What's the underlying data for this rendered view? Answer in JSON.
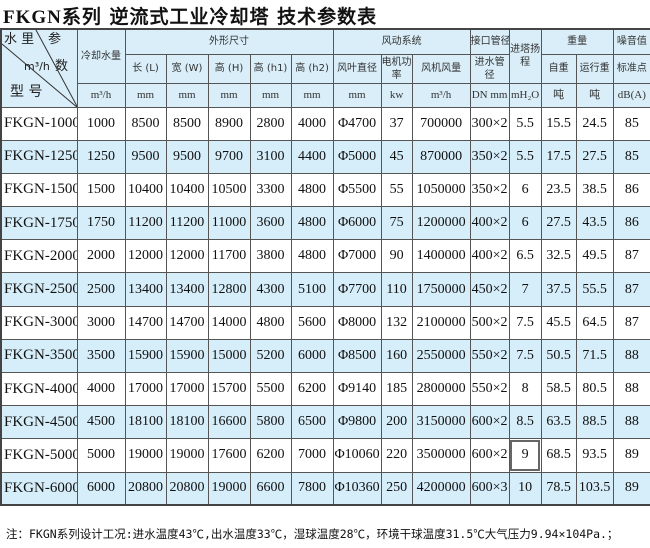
{
  "title": {
    "brand": "FKGN",
    "text": "系列  逆流式工业冷却塔   技术参数表"
  },
  "header": {
    "corner": {
      "water": "水 里",
      "param": "参",
      "unit": "m³/h",
      "shu": "数",
      "model": "型  号"
    },
    "cooling_water": "冷却水量",
    "cooling_unit": "m³/h",
    "dims": "外形尺寸",
    "L": "长 (L)",
    "W": "宽 (W)",
    "H": "高 (H)",
    "h1": "高 (h1)",
    "h2": "高 (h2)",
    "fan_system": "风动系统",
    "fan_dia": "风叶直径",
    "motor": "电机功率",
    "airflow": "风机风量",
    "pipe": "接口管径",
    "inlet": "进水管径",
    "head": "进塔扬程",
    "weight": "重量",
    "self": "自重",
    "run": "运行重",
    "noise": "噪音值",
    "std": "标准点",
    "units": [
      "mm",
      "mm",
      "mm",
      "mm",
      "mm",
      "mm",
      "kw",
      "m³/h",
      "DN mm",
      "mH₂O",
      "吨",
      "吨",
      "dB(A)"
    ]
  },
  "rows": [
    [
      "FKGN-1000",
      "1000",
      "8500",
      "8500",
      "8900",
      "2800",
      "4000",
      "Φ4700",
      "37",
      "700000",
      "300×2",
      "5.5",
      "15.5",
      "24.5",
      "85"
    ],
    [
      "FKGN-1250",
      "1250",
      "9500",
      "9500",
      "9700",
      "3100",
      "4400",
      "Φ5000",
      "45",
      "870000",
      "350×2",
      "5.5",
      "17.5",
      "27.5",
      "85"
    ],
    [
      "FKGN-1500",
      "1500",
      "10400",
      "10400",
      "10500",
      "3300",
      "4800",
      "Φ5500",
      "55",
      "1050000",
      "350×2",
      "6",
      "23.5",
      "38.5",
      "86"
    ],
    [
      "FKGN-1750",
      "1750",
      "11200",
      "11200",
      "11000",
      "3600",
      "4800",
      "Φ6000",
      "75",
      "1200000",
      "400×2",
      "6",
      "27.5",
      "43.5",
      "86"
    ],
    [
      "FKGN-2000",
      "2000",
      "12000",
      "12000",
      "11700",
      "3800",
      "4800",
      "Φ7000",
      "90",
      "1400000",
      "400×2",
      "6.5",
      "32.5",
      "49.5",
      "87"
    ],
    [
      "FKGN-2500",
      "2500",
      "13400",
      "13400",
      "12800",
      "4300",
      "5100",
      "Φ7700",
      "110",
      "1750000",
      "450×2",
      "7",
      "37.5",
      "55.5",
      "87"
    ],
    [
      "FKGN-3000",
      "3000",
      "14700",
      "14700",
      "14000",
      "4800",
      "5600",
      "Φ8000",
      "132",
      "2100000",
      "500×2",
      "7.5",
      "45.5",
      "64.5",
      "87"
    ],
    [
      "FKGN-3500",
      "3500",
      "15900",
      "15900",
      "15000",
      "5200",
      "6000",
      "Φ8500",
      "160",
      "2550000",
      "550×2",
      "7.5",
      "50.5",
      "71.5",
      "88"
    ],
    [
      "FKGN-4000",
      "4000",
      "17000",
      "17000",
      "15700",
      "5500",
      "6200",
      "Φ9140",
      "185",
      "2800000",
      "550×2",
      "8",
      "58.5",
      "80.5",
      "88"
    ],
    [
      "FKGN-4500",
      "4500",
      "18100",
      "18100",
      "16600",
      "5800",
      "6500",
      "Φ9800",
      "200",
      "3150000",
      "600×2",
      "8.5",
      "63.5",
      "88.5",
      "88"
    ],
    [
      "FKGN-5000",
      "5000",
      "19000",
      "19000",
      "17600",
      "6200",
      "7000",
      "Φ10060",
      "220",
      "3500000",
      "600×2",
      "9",
      "68.5",
      "93.5",
      "89"
    ],
    [
      "FKGN-6000",
      "6000",
      "20800",
      "20800",
      "19000",
      "6600",
      "7800",
      "Φ10360",
      "250",
      "4200000",
      "600×3",
      "10",
      "78.5",
      "103.5",
      "89"
    ]
  ],
  "note": "注：FKGN系列设计工况:进水温度43℃,出水温度33℃，湿球温度28℃，环境干球温度31.5℃大气压力9.94×104Pa.；"
}
